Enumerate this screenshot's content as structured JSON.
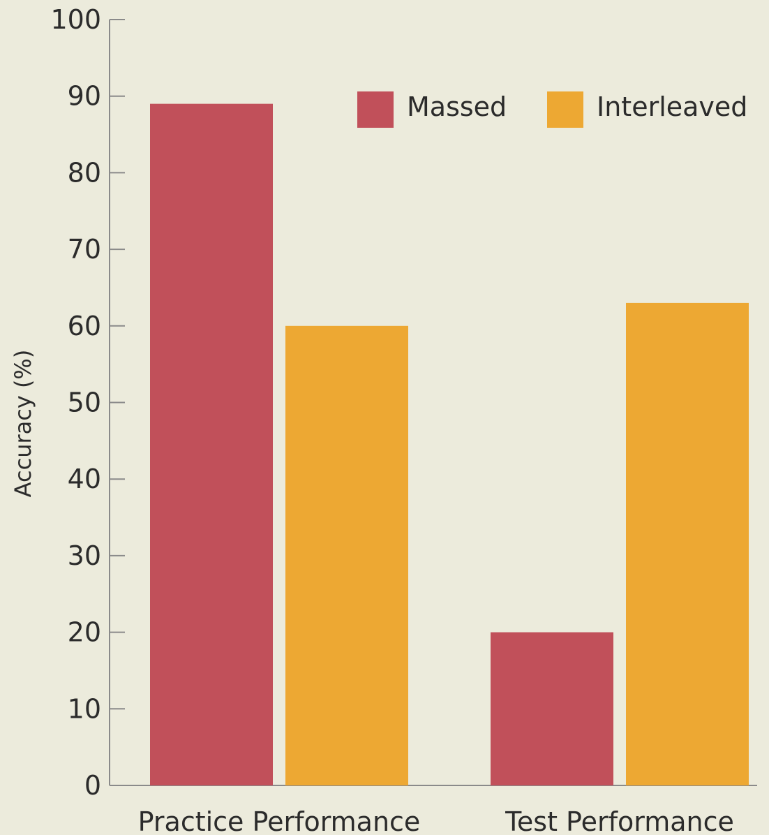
{
  "chart_data": {
    "type": "bar",
    "title": "",
    "xlabel": "",
    "ylabel": "Accuracy (%)",
    "categories": [
      "Practice Performance",
      "Test Performance"
    ],
    "series": [
      {
        "name": "Massed",
        "values": [
          89,
          20
        ],
        "color": "#c1505a"
      },
      {
        "name": "Interleaved",
        "values": [
          60,
          63
        ],
        "color": "#eda833"
      }
    ],
    "ylim": [
      0,
      100
    ],
    "yticks": [
      0,
      10,
      20,
      30,
      40,
      50,
      60,
      70,
      80,
      90,
      100
    ],
    "grid": false,
    "legend_position": "top-right",
    "background_color": "#ecebdc",
    "axis_color": "#8a8a8a"
  }
}
